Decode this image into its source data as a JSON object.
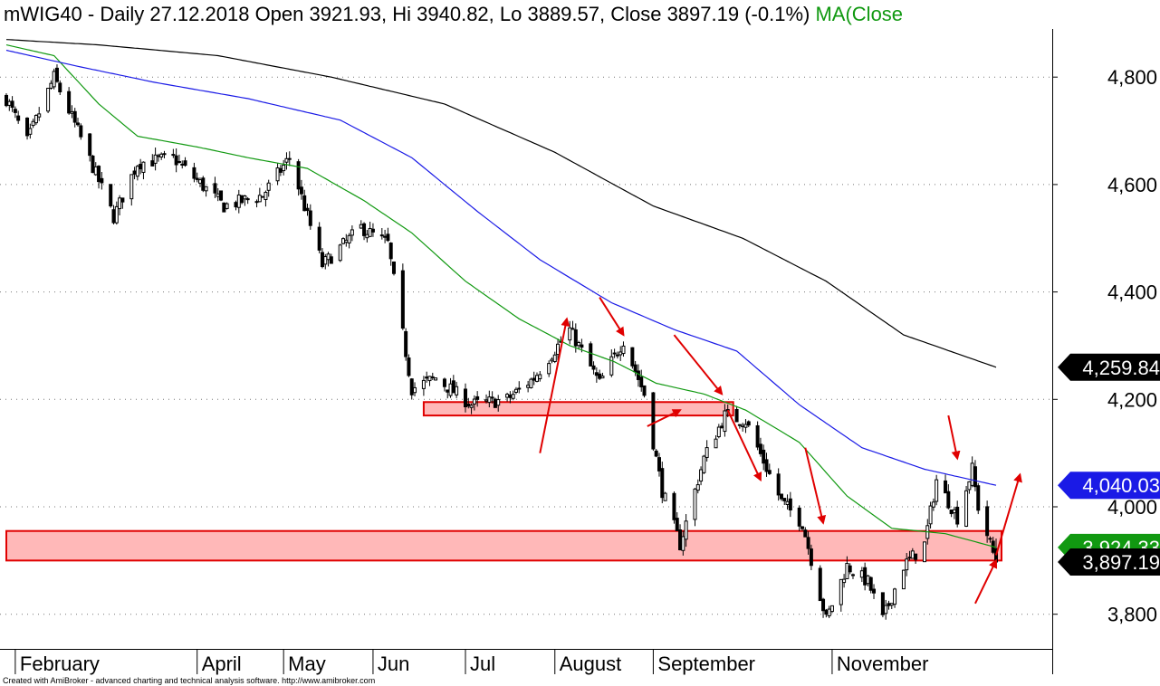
{
  "header": {
    "title": "mWIG40 - Daily 27.12.2018 Open 3921.93, Hi 3940.82, Lo 3889.57, Close 3897.19 (-0.1%)",
    "ma_label": "MA(Close"
  },
  "footer": {
    "credit": "Created with AmiBroker - advanced charting and technical analysis software. http://www.amibroker.com"
  },
  "colors": {
    "ma_short": "#119911",
    "ma_mid": "#1a1ae6",
    "ma_long": "#000000",
    "candle_outline": "#000000",
    "zone_fill": "#ffb8b8",
    "zone_stroke": "#e00000",
    "arrow": "#e00000"
  },
  "chart_data": {
    "type": "candlestick",
    "symbol": "mWIG40",
    "interval": "Daily",
    "y_ticks": [
      3800,
      4000,
      4200,
      4400,
      4600,
      4800
    ],
    "y_tick_labels": [
      "3,800",
      "4,000",
      "4,200",
      "4,400",
      "4,600",
      "4,800"
    ],
    "ylim": [
      3700,
      4920
    ],
    "grid": "horizontal dotted",
    "x_range": [
      "2018-01-29",
      "2018-12-27"
    ],
    "x_month_labels": [
      {
        "label": "February",
        "date": "2018-02-01"
      },
      {
        "label": "April",
        "date": "2018-04-03"
      },
      {
        "label": "May",
        "date": "2018-05-02"
      },
      {
        "label": "Jun",
        "date": "2018-06-01"
      },
      {
        "label": "Jul",
        "date": "2018-07-02"
      },
      {
        "label": "August",
        "date": "2018-08-01"
      },
      {
        "label": "September",
        "date": "2018-09-03"
      },
      {
        "label": "November",
        "date": "2018-11-02"
      }
    ],
    "last": {
      "date": "2018-12-27",
      "open": 3921.93,
      "high": 3940.82,
      "low": 3889.57,
      "close": 3897.19,
      "change_pct": -0.1
    },
    "value_tags": [
      {
        "label": "4,259.84",
        "value": 4259.84,
        "color": "#000000"
      },
      {
        "label": "4,040.03",
        "value": 4040.03,
        "color": "#1a1ae6"
      },
      {
        "label": "3,924.33",
        "value": 3924.33,
        "color": "#119911"
      },
      {
        "label": "3,897.19",
        "value": 3897.19,
        "color": "#000000"
      }
    ],
    "price_keypoints": [
      {
        "date": "2018-01-29",
        "value": 4760
      },
      {
        "date": "2018-02-05",
        "value": 4680
      },
      {
        "date": "2018-02-14",
        "value": 4800
      },
      {
        "date": "2018-02-22",
        "value": 4700
      },
      {
        "date": "2018-03-06",
        "value": 4540
      },
      {
        "date": "2018-03-14",
        "value": 4640
      },
      {
        "date": "2018-03-26",
        "value": 4650
      },
      {
        "date": "2018-04-12",
        "value": 4560
      },
      {
        "date": "2018-04-25",
        "value": 4580
      },
      {
        "date": "2018-05-04",
        "value": 4650
      },
      {
        "date": "2018-05-15",
        "value": 4450
      },
      {
        "date": "2018-05-28",
        "value": 4520
      },
      {
        "date": "2018-06-06",
        "value": 4490
      },
      {
        "date": "2018-06-14",
        "value": 4220
      },
      {
        "date": "2018-06-22",
        "value": 4240
      },
      {
        "date": "2018-07-04",
        "value": 4190
      },
      {
        "date": "2018-07-16",
        "value": 4200
      },
      {
        "date": "2018-07-25",
        "value": 4240
      },
      {
        "date": "2018-08-06",
        "value": 4330
      },
      {
        "date": "2018-08-16",
        "value": 4230
      },
      {
        "date": "2018-08-24",
        "value": 4310
      },
      {
        "date": "2018-08-31",
        "value": 4210
      },
      {
        "date": "2018-09-06",
        "value": 4030
      },
      {
        "date": "2018-09-12",
        "value": 3930
      },
      {
        "date": "2018-09-20",
        "value": 4090
      },
      {
        "date": "2018-09-27",
        "value": 4170
      },
      {
        "date": "2018-10-04",
        "value": 4160
      },
      {
        "date": "2018-10-16",
        "value": 4010
      },
      {
        "date": "2018-10-23",
        "value": 3970
      },
      {
        "date": "2018-10-31",
        "value": 3790
      },
      {
        "date": "2018-11-07",
        "value": 3890
      },
      {
        "date": "2018-11-14",
        "value": 3860
      },
      {
        "date": "2018-11-19",
        "value": 3790
      },
      {
        "date": "2018-11-26",
        "value": 3890
      },
      {
        "date": "2018-12-03",
        "value": 3930
      },
      {
        "date": "2018-12-07",
        "value": 4050
      },
      {
        "date": "2018-12-14",
        "value": 3980
      },
      {
        "date": "2018-12-19",
        "value": 4070
      },
      {
        "date": "2018-12-21",
        "value": 4000
      },
      {
        "date": "2018-12-27",
        "value": 3897.19
      }
    ],
    "moving_averages": [
      {
        "color": "#119911",
        "points": [
          {
            "date": "2018-01-29",
            "value": 4860
          },
          {
            "date": "2018-02-14",
            "value": 4840
          },
          {
            "date": "2018-03-01",
            "value": 4750
          },
          {
            "date": "2018-03-14",
            "value": 4690
          },
          {
            "date": "2018-04-03",
            "value": 4670
          },
          {
            "date": "2018-04-20",
            "value": 4650
          },
          {
            "date": "2018-05-10",
            "value": 4630
          },
          {
            "date": "2018-05-29",
            "value": 4570
          },
          {
            "date": "2018-06-14",
            "value": 4510
          },
          {
            "date": "2018-07-02",
            "value": 4420
          },
          {
            "date": "2018-07-20",
            "value": 4350
          },
          {
            "date": "2018-08-06",
            "value": 4300
          },
          {
            "date": "2018-08-21",
            "value": 4270
          },
          {
            "date": "2018-09-04",
            "value": 4230
          },
          {
            "date": "2018-09-20",
            "value": 4210
          },
          {
            "date": "2018-10-04",
            "value": 4180
          },
          {
            "date": "2018-10-22",
            "value": 4120
          },
          {
            "date": "2018-11-07",
            "value": 4020
          },
          {
            "date": "2018-11-22",
            "value": 3960
          },
          {
            "date": "2018-12-10",
            "value": 3950
          },
          {
            "date": "2018-12-27",
            "value": 3924.33
          }
        ]
      },
      {
        "color": "#1a1ae6",
        "points": [
          {
            "date": "2018-01-29",
            "value": 4850
          },
          {
            "date": "2018-02-22",
            "value": 4820
          },
          {
            "date": "2018-03-20",
            "value": 4790
          },
          {
            "date": "2018-04-20",
            "value": 4760
          },
          {
            "date": "2018-05-21",
            "value": 4720
          },
          {
            "date": "2018-06-14",
            "value": 4650
          },
          {
            "date": "2018-07-06",
            "value": 4550
          },
          {
            "date": "2018-07-27",
            "value": 4460
          },
          {
            "date": "2018-08-20",
            "value": 4380
          },
          {
            "date": "2018-09-10",
            "value": 4330
          },
          {
            "date": "2018-10-01",
            "value": 4290
          },
          {
            "date": "2018-10-22",
            "value": 4190
          },
          {
            "date": "2018-11-12",
            "value": 4110
          },
          {
            "date": "2018-12-03",
            "value": 4070
          },
          {
            "date": "2018-12-27",
            "value": 4040.03
          }
        ]
      },
      {
        "color": "#000000",
        "points": [
          {
            "date": "2018-01-29",
            "value": 4870
          },
          {
            "date": "2018-03-01",
            "value": 4860
          },
          {
            "date": "2018-04-10",
            "value": 4840
          },
          {
            "date": "2018-05-18",
            "value": 4800
          },
          {
            "date": "2018-06-25",
            "value": 4750
          },
          {
            "date": "2018-08-01",
            "value": 4660
          },
          {
            "date": "2018-09-03",
            "value": 4560
          },
          {
            "date": "2018-10-03",
            "value": 4500
          },
          {
            "date": "2018-10-31",
            "value": 4420
          },
          {
            "date": "2018-11-26",
            "value": 4320
          },
          {
            "date": "2018-12-27",
            "value": 4259.84
          }
        ]
      }
    ],
    "zones": [
      {
        "from": "2018-06-18",
        "to": "2018-09-28",
        "low": 4170,
        "high": 4195
      },
      {
        "from": "2018-01-29",
        "to": "2018-12-27",
        "low": 3900,
        "high": 3955
      }
    ],
    "arrows": [
      {
        "from": {
          "date": "2018-07-27",
          "value": 4100
        },
        "to": {
          "date": "2018-08-05",
          "value": 4350
        }
      },
      {
        "from": {
          "date": "2018-08-16",
          "value": 4390
        },
        "to": {
          "date": "2018-08-24",
          "value": 4320
        }
      },
      {
        "from": {
          "date": "2018-09-01",
          "value": 4150
        },
        "to": {
          "date": "2018-09-12",
          "value": 4180
        }
      },
      {
        "from": {
          "date": "2018-09-10",
          "value": 4320
        },
        "to": {
          "date": "2018-09-26",
          "value": 4210
        }
      },
      {
        "from": {
          "date": "2018-09-28",
          "value": 4180
        },
        "to": {
          "date": "2018-10-09",
          "value": 4050
        }
      },
      {
        "from": {
          "date": "2018-10-24",
          "value": 4110
        },
        "to": {
          "date": "2018-10-30",
          "value": 3970
        }
      },
      {
        "from": {
          "date": "2018-12-11",
          "value": 4170
        },
        "to": {
          "date": "2018-12-14",
          "value": 4090
        }
      },
      {
        "from": {
          "date": "2018-12-20",
          "value": 3820
        },
        "to": {
          "date": "2018-12-27",
          "value": 3900
        }
      },
      {
        "from": {
          "date": "2018-12-27",
          "value": 3910
        },
        "to": {
          "date": "2019-01-04",
          "value": 4060
        }
      }
    ]
  }
}
